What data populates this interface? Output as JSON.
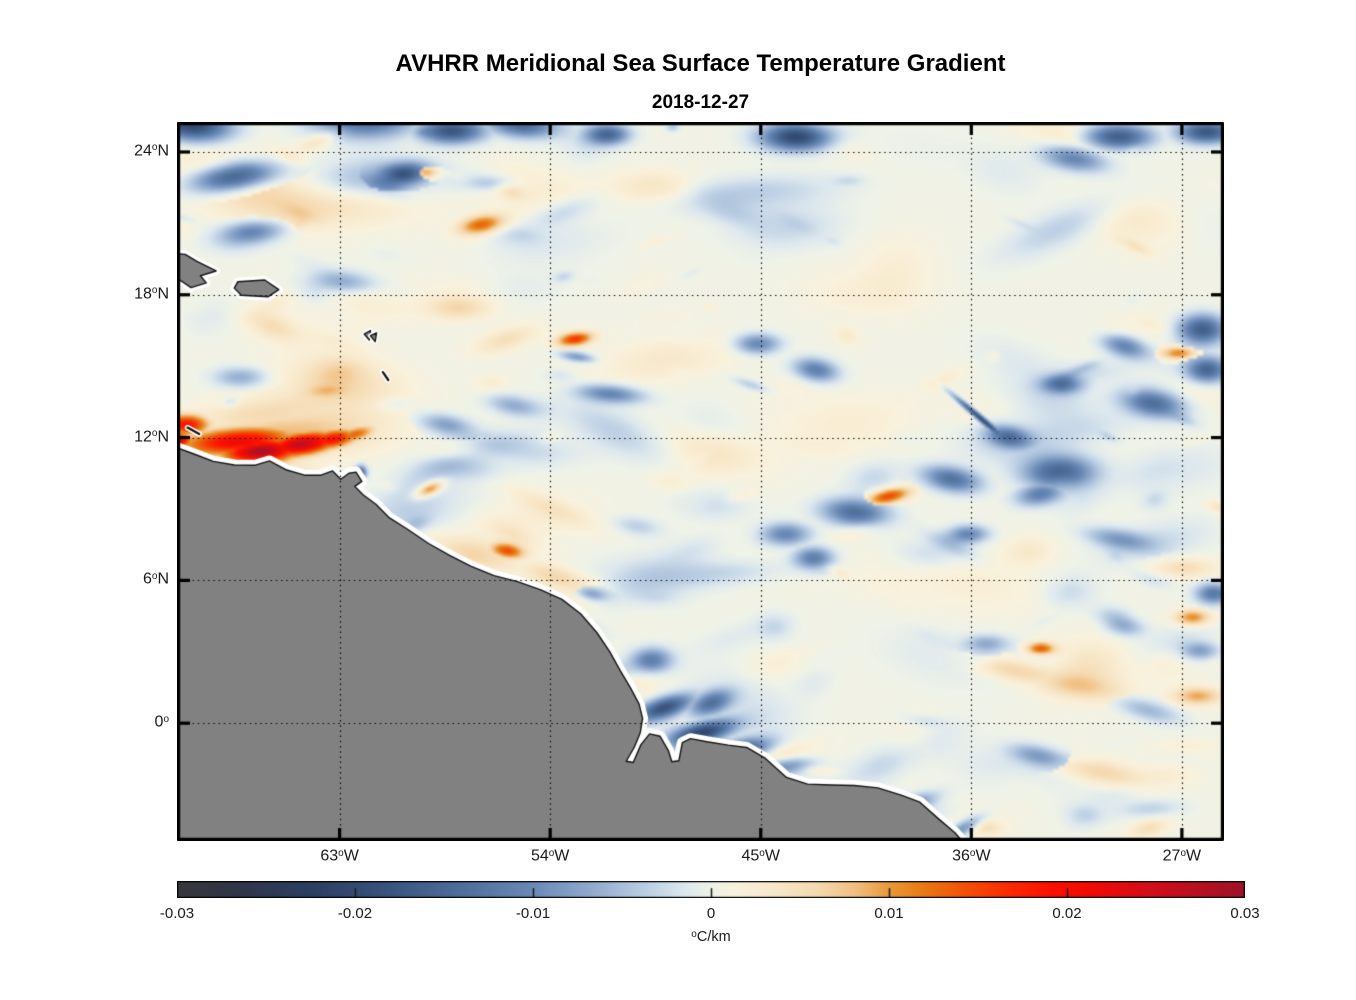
{
  "chart_data": {
    "type": "heatmap",
    "title": "AVHRR Meridional Sea Surface Temperature Gradient",
    "subtitle": "2018-12-27",
    "deg_symbol": "o",
    "units": {
      "sup": "o",
      "text": "C/km"
    },
    "extent": {
      "lon": [
        -69.95,
        -25.2
      ],
      "lat": [
        -4.95,
        25.26
      ]
    },
    "x_ticks": [
      {
        "lon": -63,
        "deg": "63",
        "hemi": "W"
      },
      {
        "lon": -54,
        "deg": "54",
        "hemi": "W"
      },
      {
        "lon": -45,
        "deg": "45",
        "hemi": "W"
      },
      {
        "lon": -36,
        "deg": "36",
        "hemi": "W"
      },
      {
        "lon": -27,
        "deg": "27",
        "hemi": "W"
      }
    ],
    "y_ticks": [
      {
        "lat": 24,
        "deg": "24",
        "hemi": "N"
      },
      {
        "lat": 18,
        "deg": "18",
        "hemi": "N"
      },
      {
        "lat": 12,
        "deg": "12",
        "hemi": "N"
      },
      {
        "lat": 6,
        "deg": "6",
        "hemi": "N"
      },
      {
        "lat": 0,
        "deg": "0",
        "hemi": ""
      }
    ],
    "grid": {
      "style": "dotted",
      "on": true
    },
    "colorbar": {
      "min": -0.03,
      "max": 0.03,
      "tick_values": [
        -0.03,
        -0.02,
        -0.01,
        0,
        0.01,
        0.02,
        0.03
      ],
      "tick_labels": [
        "-0.03",
        "-0.02",
        "-0.01",
        "0",
        "0.01",
        "0.02",
        "0.03"
      ],
      "inner_tick_values": [
        -0.02,
        -0.01,
        0,
        0.01,
        0.02
      ],
      "stops": [
        [
          0.0,
          "#37383b"
        ],
        [
          0.06,
          "#30364a"
        ],
        [
          0.13,
          "#2c4063"
        ],
        [
          0.2,
          "#3a557f"
        ],
        [
          0.27,
          "#50709c"
        ],
        [
          0.33,
          "#6888b6"
        ],
        [
          0.385,
          "#8fa9cc"
        ],
        [
          0.44,
          "#bccfe4"
        ],
        [
          0.475,
          "#dde8ee"
        ],
        [
          0.5,
          "#eef2e8"
        ],
        [
          0.525,
          "#f9f1dc"
        ],
        [
          0.56,
          "#f8e8ca"
        ],
        [
          0.6,
          "#f5d9b0"
        ],
        [
          0.635,
          "#f1c083"
        ],
        [
          0.665,
          "#ea9b3d"
        ],
        [
          0.695,
          "#e77f18"
        ],
        [
          0.73,
          "#f1580a"
        ],
        [
          0.775,
          "#fb2e02"
        ],
        [
          0.82,
          "#fc1000"
        ],
        [
          0.86,
          "#ee0c06"
        ],
        [
          0.905,
          "#d60e18"
        ],
        [
          0.95,
          "#bb1020"
        ],
        [
          1.0,
          "#9e1326"
        ]
      ]
    },
    "style": {
      "background": "#ffffff",
      "land_fill": "#818181",
      "coast_line": "#151515",
      "no_data_halo": "#ffffff",
      "grid_color": "#0a0a0a",
      "axis_color": "#000000",
      "text_color": "#1a1a1a"
    },
    "ocean_base_value": 0.0004,
    "noise": {
      "seed": 11,
      "count": 300,
      "max_amp": 0.0055
    },
    "land": {
      "mainland": [
        [
          -70.4,
          11.7
        ],
        [
          -69.97,
          11.58
        ],
        [
          -69.2,
          11.3
        ],
        [
          -68.4,
          11.0
        ],
        [
          -67.5,
          10.85
        ],
        [
          -66.6,
          10.84
        ],
        [
          -66.0,
          11.02
        ],
        [
          -65.3,
          10.65
        ],
        [
          -64.5,
          10.42
        ],
        [
          -63.8,
          10.42
        ],
        [
          -63.3,
          10.6
        ],
        [
          -62.95,
          10.25
        ],
        [
          -62.6,
          10.5
        ],
        [
          -62.3,
          10.55
        ],
        [
          -62.05,
          10.16
        ],
        [
          -62.35,
          9.95
        ],
        [
          -62.0,
          9.6
        ],
        [
          -61.45,
          9.2
        ],
        [
          -60.9,
          8.65
        ],
        [
          -60.1,
          8.15
        ],
        [
          -59.2,
          7.55
        ],
        [
          -58.3,
          7.05
        ],
        [
          -57.4,
          6.6
        ],
        [
          -56.4,
          6.2
        ],
        [
          -55.4,
          5.95
        ],
        [
          -54.4,
          5.6
        ],
        [
          -53.5,
          5.2
        ],
        [
          -52.7,
          4.6
        ],
        [
          -52.0,
          3.8
        ],
        [
          -51.45,
          3.0
        ],
        [
          -51.0,
          2.2
        ],
        [
          -50.55,
          1.45
        ],
        [
          -50.2,
          0.8
        ],
        [
          -50.05,
          0.2
        ],
        [
          -50.15,
          -0.4
        ],
        [
          -50.4,
          -1.0
        ],
        [
          -50.75,
          -1.6
        ],
        [
          -50.45,
          -1.65
        ],
        [
          -50.12,
          -0.9
        ],
        [
          -49.75,
          -0.45
        ],
        [
          -49.3,
          -0.55
        ],
        [
          -48.95,
          -1.15
        ],
        [
          -48.8,
          -1.62
        ],
        [
          -48.5,
          -1.58
        ],
        [
          -48.35,
          -0.82
        ],
        [
          -48.0,
          -0.65
        ],
        [
          -47.3,
          -0.78
        ],
        [
          -46.4,
          -0.92
        ],
        [
          -45.6,
          -1.02
        ],
        [
          -44.8,
          -1.48
        ],
        [
          -43.9,
          -2.28
        ],
        [
          -43.0,
          -2.56
        ],
        [
          -42.0,
          -2.6
        ],
        [
          -41.0,
          -2.62
        ],
        [
          -40.0,
          -2.72
        ],
        [
          -39.0,
          -3.02
        ],
        [
          -38.2,
          -3.32
        ],
        [
          -37.4,
          -4.02
        ],
        [
          -36.7,
          -4.6
        ],
        [
          -36.35,
          -5.0
        ],
        [
          -36.1,
          -5.6
        ],
        [
          -70.4,
          -5.6
        ]
      ],
      "islands": [
        [
          [
            -70.3,
            19.75
          ],
          [
            -69.6,
            19.7
          ],
          [
            -69.1,
            19.4
          ],
          [
            -68.28,
            19.0
          ],
          [
            -68.95,
            18.8
          ],
          [
            -68.7,
            18.5
          ],
          [
            -69.35,
            18.3
          ],
          [
            -69.8,
            18.6
          ],
          [
            -70.3,
            18.5
          ]
        ],
        [
          [
            -67.35,
            18.55
          ],
          [
            -66.2,
            18.62
          ],
          [
            -65.6,
            18.22
          ],
          [
            -66.05,
            17.92
          ],
          [
            -67.2,
            17.98
          ],
          [
            -67.5,
            18.28
          ]
        ]
      ],
      "small_islands": [
        [
          [
            -61.95,
            16.35
          ],
          [
            -61.68,
            16.5
          ],
          [
            -61.73,
            16.1
          ]
        ],
        [
          [
            -61.68,
            16.28
          ],
          [
            -61.42,
            16.4
          ],
          [
            -61.48,
            16.03
          ]
        ]
      ],
      "dashes": [
        [
          [
            -61.15,
            14.75
          ],
          [
            -60.92,
            14.42
          ]
        ],
        [
          [
            -69.5,
            12.42
          ],
          [
            -69.0,
            12.15
          ]
        ]
      ]
    },
    "features": [
      [
        -69.4,
        25.2,
        1.7,
        0.7,
        -0.021,
        5
      ],
      [
        -67.6,
        23.0,
        1.9,
        0.62,
        -0.019,
        -8
      ],
      [
        -61.9,
        25.4,
        2.3,
        0.8,
        -0.015,
        0
      ],
      [
        -60.4,
        23.1,
        1.15,
        0.5,
        -0.016,
        -10
      ],
      [
        -58.3,
        24.95,
        1.5,
        0.55,
        -0.019,
        0
      ],
      [
        -55.3,
        25.2,
        1.6,
        0.55,
        -0.015,
        5
      ],
      [
        -51.6,
        24.8,
        0.95,
        0.45,
        -0.015,
        0
      ],
      [
        -43.5,
        24.7,
        1.6,
        0.6,
        -0.021,
        0
      ],
      [
        -29.8,
        24.7,
        1.5,
        0.55,
        -0.017,
        0
      ],
      [
        -26.0,
        24.9,
        1.3,
        0.5,
        -0.018,
        0
      ],
      [
        -31.7,
        23.8,
        1.5,
        0.55,
        -0.012,
        10
      ],
      [
        -66.8,
        20.7,
        1.4,
        0.5,
        -0.011,
        -5
      ],
      [
        -63.5,
        21.9,
        4.0,
        1.0,
        0.0045,
        0
      ],
      [
        -57.0,
        21.0,
        1.05,
        0.42,
        0.013,
        -10
      ],
      [
        -59.4,
        23.2,
        0.6,
        0.3,
        0.011,
        0
      ],
      [
        -49.5,
        22.6,
        2.0,
        0.7,
        0.004,
        0
      ],
      [
        -53.0,
        16.2,
        0.8,
        0.3,
        0.016,
        -8
      ],
      [
        -52.9,
        15.45,
        0.8,
        0.22,
        -0.009,
        8
      ],
      [
        -51.5,
        13.9,
        1.5,
        0.4,
        -0.011,
        5
      ],
      [
        -45.2,
        16.0,
        1.0,
        0.45,
        -0.011,
        0
      ],
      [
        -42.7,
        14.9,
        1.0,
        0.5,
        -0.012,
        10
      ],
      [
        -63.0,
        18.6,
        1.5,
        0.5,
        -0.008,
        5
      ],
      [
        -58.5,
        12.6,
        1.2,
        0.45,
        -0.008,
        10
      ],
      [
        -57.6,
        11.4,
        1.6,
        0.5,
        0.007,
        0
      ],
      [
        -55.6,
        13.4,
        1.2,
        0.45,
        -0.007,
        10
      ],
      [
        -58.0,
        17.5,
        1.4,
        0.5,
        0.005,
        0
      ],
      [
        -67.3,
        14.6,
        1.2,
        0.45,
        -0.007,
        0
      ],
      [
        -27.2,
        15.6,
        0.85,
        0.3,
        0.012,
        0
      ],
      [
        -26.2,
        16.6,
        1.05,
        0.65,
        -0.017,
        0
      ],
      [
        -26.0,
        14.9,
        0.9,
        0.55,
        -0.014,
        0
      ],
      [
        -29.5,
        15.9,
        1.1,
        0.5,
        -0.012,
        15
      ],
      [
        -32.2,
        14.3,
        0.9,
        0.4,
        -0.012,
        0
      ],
      [
        -28.3,
        13.5,
        1.4,
        0.6,
        -0.014,
        10
      ],
      [
        -35.7,
        12.9,
        1.5,
        0.13,
        -0.021,
        40
      ],
      [
        -34.5,
        12.1,
        1.0,
        0.45,
        -0.012,
        10
      ],
      [
        -32.3,
        10.6,
        1.6,
        0.75,
        -0.016,
        0
      ],
      [
        -33.1,
        9.7,
        1.1,
        0.5,
        -0.012,
        -10
      ],
      [
        -36.9,
        10.3,
        1.3,
        0.55,
        -0.013,
        10
      ],
      [
        -36.2,
        8.0,
        0.9,
        0.4,
        -0.011,
        0
      ],
      [
        -41.0,
        8.9,
        1.5,
        0.6,
        -0.014,
        5
      ],
      [
        -44.0,
        8.0,
        1.1,
        0.5,
        -0.011,
        0
      ],
      [
        -42.8,
        7.0,
        0.9,
        0.5,
        -0.012,
        0
      ],
      [
        -39.6,
        9.6,
        1.0,
        0.33,
        0.015,
        -12
      ],
      [
        -57.5,
        7.2,
        2.4,
        0.7,
        0.006,
        12
      ],
      [
        -55.9,
        7.3,
        0.8,
        0.33,
        0.014,
        10
      ],
      [
        -59.2,
        9.9,
        0.65,
        0.26,
        0.012,
        -25
      ],
      [
        -53.8,
        6.2,
        1.7,
        0.5,
        0.006,
        15
      ],
      [
        -52.3,
        5.5,
        0.7,
        0.3,
        -0.008,
        10
      ],
      [
        -65.6,
        12.15,
        4.2,
        1.0,
        0.008,
        -3
      ],
      [
        -66.5,
        13.0,
        3.0,
        0.8,
        0.005,
        -5
      ],
      [
        -67.4,
        11.9,
        2.6,
        0.6,
        0.021,
        -4
      ],
      [
        -66.4,
        11.5,
        1.7,
        0.5,
        0.028,
        -5
      ],
      [
        -64.7,
        11.78,
        1.6,
        0.48,
        0.026,
        -8
      ],
      [
        -63.4,
        11.98,
        1.1,
        0.4,
        0.019,
        -10
      ],
      [
        -62.4,
        12.2,
        0.9,
        0.3,
        0.012,
        -15
      ],
      [
        -69.6,
        12.6,
        1.0,
        0.45,
        0.019,
        0
      ],
      [
        -69.95,
        11.95,
        0.6,
        0.3,
        0.024,
        0
      ],
      [
        -62.15,
        10.6,
        0.26,
        0.3,
        -0.015,
        0
      ],
      [
        -49.7,
        2.7,
        0.9,
        0.55,
        -0.011,
        0
      ],
      [
        -47.2,
        0.9,
        1.0,
        0.5,
        -0.013,
        -20
      ],
      [
        -49.2,
        0.7,
        1.3,
        0.45,
        -0.018,
        -18
      ],
      [
        -47.6,
        -0.35,
        1.5,
        0.45,
        -0.021,
        -14
      ],
      [
        -45.9,
        -1.05,
        1.4,
        0.45,
        -0.016,
        -10
      ],
      [
        -44.0,
        -1.75,
        1.2,
        0.4,
        -0.011,
        -8
      ],
      [
        -38.8,
        -3.45,
        1.3,
        0.38,
        -0.012,
        -20
      ],
      [
        -36.4,
        -4.35,
        1.0,
        0.32,
        -0.011,
        -28
      ],
      [
        -30.5,
        -2.0,
        2.1,
        0.55,
        0.006,
        10
      ],
      [
        -33.2,
        -1.3,
        1.3,
        0.45,
        -0.008,
        12
      ],
      [
        -28.5,
        0.6,
        1.5,
        0.45,
        -0.006,
        15
      ],
      [
        -31.5,
        1.6,
        2.2,
        0.55,
        0.005,
        8
      ],
      [
        -34.3,
        2.3,
        1.9,
        0.5,
        0.006,
        12
      ],
      [
        -33.1,
        3.2,
        0.65,
        0.28,
        0.014,
        0
      ],
      [
        -29.7,
        4.3,
        1.0,
        0.5,
        -0.01,
        15
      ],
      [
        -26.3,
        3.1,
        0.85,
        0.4,
        -0.008,
        0
      ],
      [
        -25.7,
        5.5,
        0.8,
        0.45,
        -0.013,
        0
      ],
      [
        -26.6,
        4.5,
        0.8,
        0.35,
        0.011,
        0
      ],
      [
        -26.4,
        1.2,
        1.1,
        0.4,
        0.009,
        0
      ],
      [
        -27.0,
        6.6,
        1.5,
        0.45,
        0.005,
        0
      ],
      [
        -29.8,
        7.8,
        1.5,
        0.45,
        -0.008,
        10
      ],
      [
        -35.4,
        3.4,
        1.0,
        0.4,
        -0.007,
        0
      ]
    ]
  }
}
